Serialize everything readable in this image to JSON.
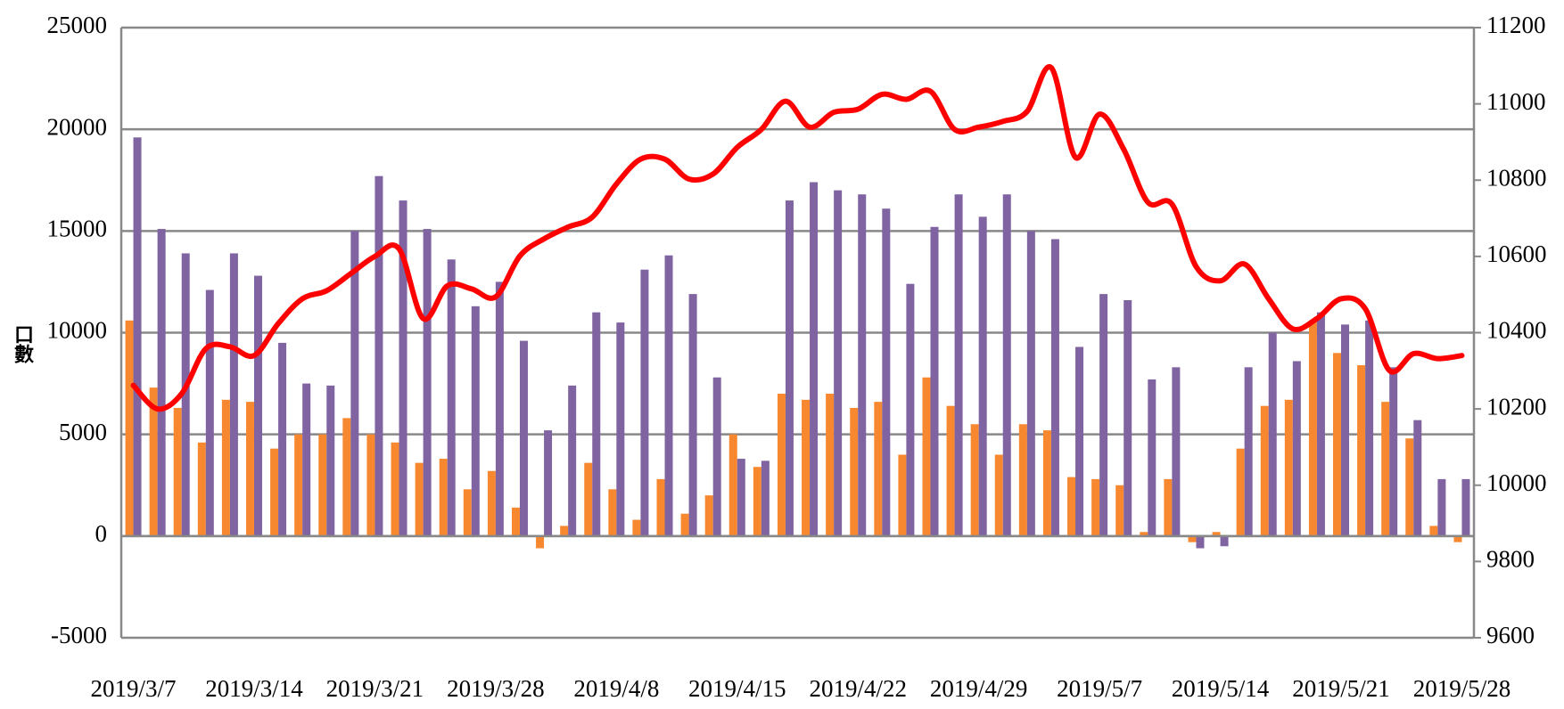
{
  "chart_data": {
    "type": "bar_line",
    "y_label": "口數",
    "categories": [
      "2019/3/7",
      null,
      null,
      null,
      null,
      "2019/3/14",
      null,
      null,
      null,
      null,
      "2019/3/21",
      null,
      null,
      null,
      null,
      "2019/3/28",
      null,
      null,
      null,
      null,
      "2019/4/8",
      null,
      null,
      null,
      null,
      "2019/4/15",
      null,
      null,
      null,
      null,
      "2019/4/22",
      null,
      null,
      null,
      null,
      "2019/4/29",
      null,
      null,
      null,
      null,
      "2019/5/7",
      null,
      null,
      null,
      null,
      "2019/5/14",
      null,
      null,
      null,
      null,
      "2019/5/21",
      null,
      null,
      null,
      null,
      "2019/5/28"
    ],
    "series": [
      {
        "type": "bar",
        "color": "#f7882f",
        "values": [
          10600,
          7300,
          6300,
          4600,
          6700,
          6600,
          4300,
          5000,
          5000,
          5800,
          5000,
          4600,
          3600,
          3800,
          2300,
          3200,
          1400,
          -600,
          500,
          3600,
          2300,
          800,
          2800,
          1100,
          2000,
          5000,
          3400,
          7000,
          6700,
          7000,
          6300,
          6600,
          4000,
          7800,
          6400,
          5500,
          4000,
          5500,
          5200,
          2900,
          2800,
          2500,
          200,
          2800,
          -300,
          200,
          4300,
          6400,
          6700,
          10600,
          9000,
          8400,
          6600,
          4800,
          500,
          -300
        ]
      },
      {
        "type": "bar",
        "color": "#8064a2",
        "values": [
          19600,
          15100,
          13900,
          12100,
          13900,
          12800,
          9500,
          7500,
          7400,
          15000,
          17700,
          16500,
          15100,
          13600,
          11300,
          12500,
          9600,
          5200,
          7400,
          11000,
          10500,
          13100,
          13800,
          11900,
          7800,
          3800,
          3700,
          16500,
          17400,
          17000,
          16800,
          16100,
          12400,
          15200,
          16800,
          15700,
          16800,
          15000,
          14600,
          9300,
          11900,
          11600,
          7700,
          8300,
          -600,
          -500,
          8300,
          10000,
          8600,
          11000,
          10400,
          10600,
          8300,
          5700,
          2800,
          2800
        ]
      },
      {
        "type": "line",
        "axis": "y2",
        "color": "#ff0000",
        "values": [
          10262,
          10200,
          10240,
          10358,
          10363,
          10340,
          10424,
          10489,
          10510,
          10555,
          10600,
          10620,
          10437,
          10523,
          10515,
          10494,
          10601,
          10646,
          10677,
          10703,
          10790,
          10855,
          10855,
          10803,
          10816,
          10886,
          10933,
          11007,
          10939,
          10978,
          10986,
          11025,
          11012,
          11033,
          10933,
          10939,
          10954,
          10980,
          11095,
          10860,
          10973,
          10881,
          10742,
          10737,
          10573,
          10536,
          10580,
          10489,
          10410,
          10437,
          10489,
          10463,
          10301,
          10345,
          10332,
          10340
        ]
      }
    ],
    "ylim": [
      -5000,
      25000
    ],
    "yticks": [
      -5000,
      0,
      5000,
      10000,
      15000,
      20000,
      25000
    ],
    "y2lim": [
      9600,
      11200
    ],
    "y2ticks": [
      9600,
      9800,
      10000,
      10200,
      10400,
      10600,
      10800,
      11000,
      11200
    ],
    "grid": true
  }
}
